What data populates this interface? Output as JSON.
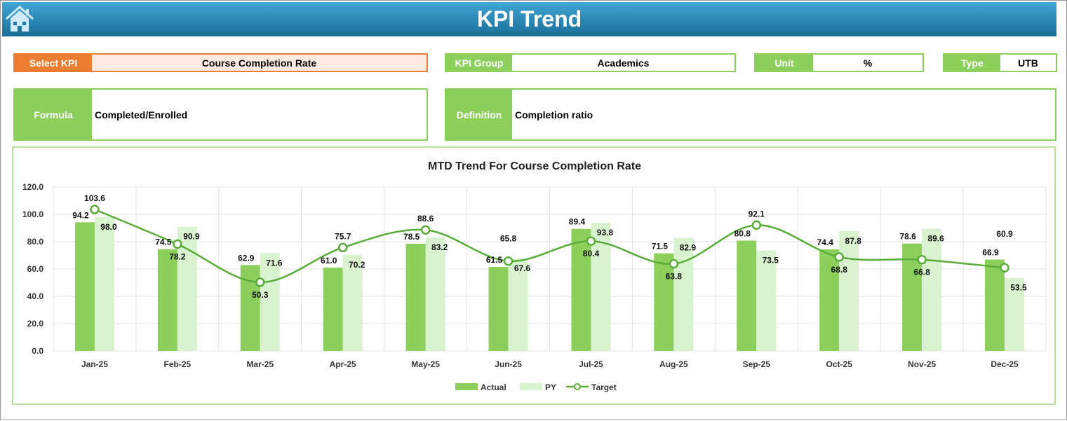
{
  "header": {
    "title": "KPI Trend",
    "home_icon": "home-icon"
  },
  "fields": {
    "select_kpi": {
      "label": "Select KPI",
      "value": "Course Completion Rate"
    },
    "kpi_group": {
      "label": "KPI Group",
      "value": "Academics"
    },
    "unit": {
      "label": "Unit",
      "value": "%"
    },
    "type": {
      "label": "Type",
      "value": "UTB"
    },
    "formula": {
      "label": "Formula",
      "value": "Completed/Enrolled"
    },
    "definition": {
      "label": "Definition",
      "value": "Completion ratio"
    }
  },
  "colors": {
    "accent_orange": "#ed7d31",
    "green": "#8ccf5a",
    "actual": "#8ccf5a",
    "py": "#d9f2cf",
    "target": "#5aac3a"
  },
  "chart_data": {
    "type": "bar",
    "title": "MTD Trend For Course Completion Rate",
    "categories": [
      "Jan-25",
      "Feb-25",
      "Mar-25",
      "Apr-25",
      "May-25",
      "Jun-25",
      "Jul-25",
      "Aug-25",
      "Sep-25",
      "Oct-25",
      "Nov-25",
      "Dec-25"
    ],
    "ylim": [
      0,
      120
    ],
    "yticks": [
      "0.0",
      "20.0",
      "40.0",
      "60.0",
      "80.0",
      "100.0",
      "120.0"
    ],
    "grid": true,
    "legend_placement": "bottom",
    "series": [
      {
        "name": "Actual",
        "type": "bar",
        "values": [
          94.2,
          74.5,
          62.9,
          61.0,
          78.5,
          61.5,
          89.4,
          71.5,
          80.8,
          74.4,
          78.6,
          66.9
        ]
      },
      {
        "name": "PY",
        "type": "bar",
        "values": [
          98.0,
          90.9,
          71.6,
          70.2,
          83.2,
          67.6,
          93.8,
          82.9,
          73.5,
          87.8,
          89.6,
          53.5
        ]
      },
      {
        "name": "Target",
        "type": "line",
        "values": [
          103.6,
          78.2,
          50.3,
          75.7,
          88.6,
          65.8,
          80.4,
          63.8,
          92.1,
          68.8,
          66.8,
          60.9
        ]
      }
    ]
  }
}
